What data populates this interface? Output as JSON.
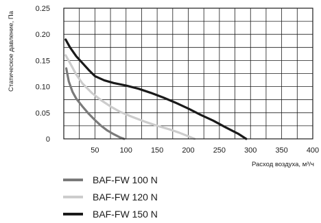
{
  "chart_data": {
    "type": "line",
    "xlabel": "Расход воздуха, м³/ч",
    "ylabel": "Статическое давление, Па",
    "xlim": [
      0,
      400
    ],
    "ylim": [
      0,
      0.25
    ],
    "x_ticks": [
      50,
      100,
      150,
      200,
      250,
      300,
      350,
      400
    ],
    "x_tick_labels": [
      "50",
      "100",
      "150",
      "200",
      "250",
      "300",
      "350",
      "400"
    ],
    "y_ticks": [
      0,
      0.05,
      0.1,
      0.15,
      0.2,
      0.25
    ],
    "y_tick_labels": [
      "0",
      "0.05",
      "0.10",
      "0.15",
      "0.20",
      "0.25"
    ],
    "grid": true,
    "x_grid_step": 25,
    "y_grid_step": 0.025,
    "legend_position": "bottom",
    "series": [
      {
        "name": "BAF-FW 100 N",
        "color": "#7a7a7a",
        "points": [
          [
            4,
            0.135
          ],
          [
            8,
            0.11
          ],
          [
            14,
            0.09
          ],
          [
            20,
            0.077
          ],
          [
            30,
            0.062
          ],
          [
            40,
            0.048
          ],
          [
            50,
            0.036
          ],
          [
            60,
            0.025
          ],
          [
            70,
            0.016
          ],
          [
            80,
            0.009
          ],
          [
            90,
            0.003
          ],
          [
            97,
            0
          ]
        ]
      },
      {
        "name": "BAF-FW 120 N",
        "color": "#cccccc",
        "points": [
          [
            3,
            0.16
          ],
          [
            10,
            0.145
          ],
          [
            20,
            0.123
          ],
          [
            30,
            0.106
          ],
          [
            45,
            0.088
          ],
          [
            60,
            0.074
          ],
          [
            75,
            0.062
          ],
          [
            90,
            0.052
          ],
          [
            110,
            0.042
          ],
          [
            130,
            0.033
          ],
          [
            150,
            0.025
          ],
          [
            170,
            0.018
          ],
          [
            185,
            0.012
          ],
          [
            200,
            0.005
          ],
          [
            210,
            0
          ]
        ]
      },
      {
        "name": "BAF-FW 150 N",
        "color": "#1a1a1a",
        "points": [
          [
            3,
            0.19
          ],
          [
            10,
            0.175
          ],
          [
            20,
            0.158
          ],
          [
            30,
            0.145
          ],
          [
            40,
            0.132
          ],
          [
            50,
            0.12
          ],
          [
            65,
            0.112
          ],
          [
            80,
            0.107
          ],
          [
            100,
            0.102
          ],
          [
            120,
            0.096
          ],
          [
            140,
            0.088
          ],
          [
            160,
            0.079
          ],
          [
            180,
            0.069
          ],
          [
            200,
            0.058
          ],
          [
            220,
            0.046
          ],
          [
            240,
            0.035
          ],
          [
            260,
            0.022
          ],
          [
            280,
            0.01
          ],
          [
            293,
            0
          ]
        ]
      }
    ]
  }
}
